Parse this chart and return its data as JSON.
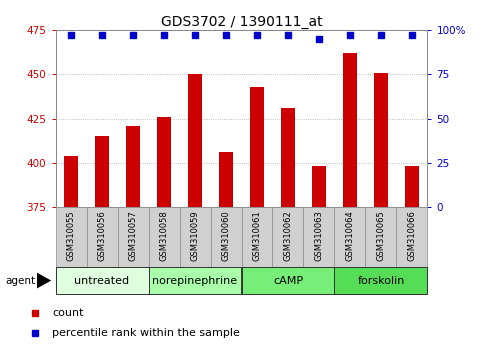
{
  "title": "GDS3702 / 1390111_at",
  "categories": [
    "GSM310055",
    "GSM310056",
    "GSM310057",
    "GSM310058",
    "GSM310059",
    "GSM310060",
    "GSM310061",
    "GSM310062",
    "GSM310063",
    "GSM310064",
    "GSM310065",
    "GSM310066"
  ],
  "bar_values": [
    404,
    415,
    421,
    426,
    450,
    406,
    443,
    431,
    398,
    462,
    451,
    398
  ],
  "percentile_values": [
    97,
    97,
    97,
    97,
    97,
    97,
    97,
    97,
    95,
    97,
    97,
    97
  ],
  "bar_color": "#cc0000",
  "dot_color": "#0000cc",
  "ylim_left": [
    375,
    475
  ],
  "ylim_right": [
    0,
    100
  ],
  "yticks_left": [
    375,
    400,
    425,
    450,
    475
  ],
  "yticks_right": [
    0,
    25,
    50,
    75,
    100
  ],
  "groups": [
    {
      "label": "untreated",
      "start": 0,
      "end": 3,
      "color": "#dfffdf"
    },
    {
      "label": "norepinephrine",
      "start": 3,
      "end": 6,
      "color": "#aaffaa"
    },
    {
      "label": "cAMP",
      "start": 6,
      "end": 9,
      "color": "#77ee77"
    },
    {
      "label": "forskolin",
      "start": 9,
      "end": 12,
      "color": "#55dd55"
    }
  ],
  "legend_count_color": "#cc0000",
  "legend_dot_color": "#0000cc",
  "grid_color": "#aaaaaa",
  "bar_bottom": 375,
  "left_tick_color": "#cc0000",
  "right_tick_color": "#0000cc",
  "agent_label": "agent",
  "bg_color": "#ffffff",
  "plot_bg": "#ffffff",
  "title_fontsize": 10,
  "tick_fontsize": 7.5,
  "cat_fontsize": 6,
  "group_fontsize": 8,
  "legend_fontsize": 8,
  "sample_box_color": "#d0d0d0",
  "sample_box_edge": "#888888"
}
